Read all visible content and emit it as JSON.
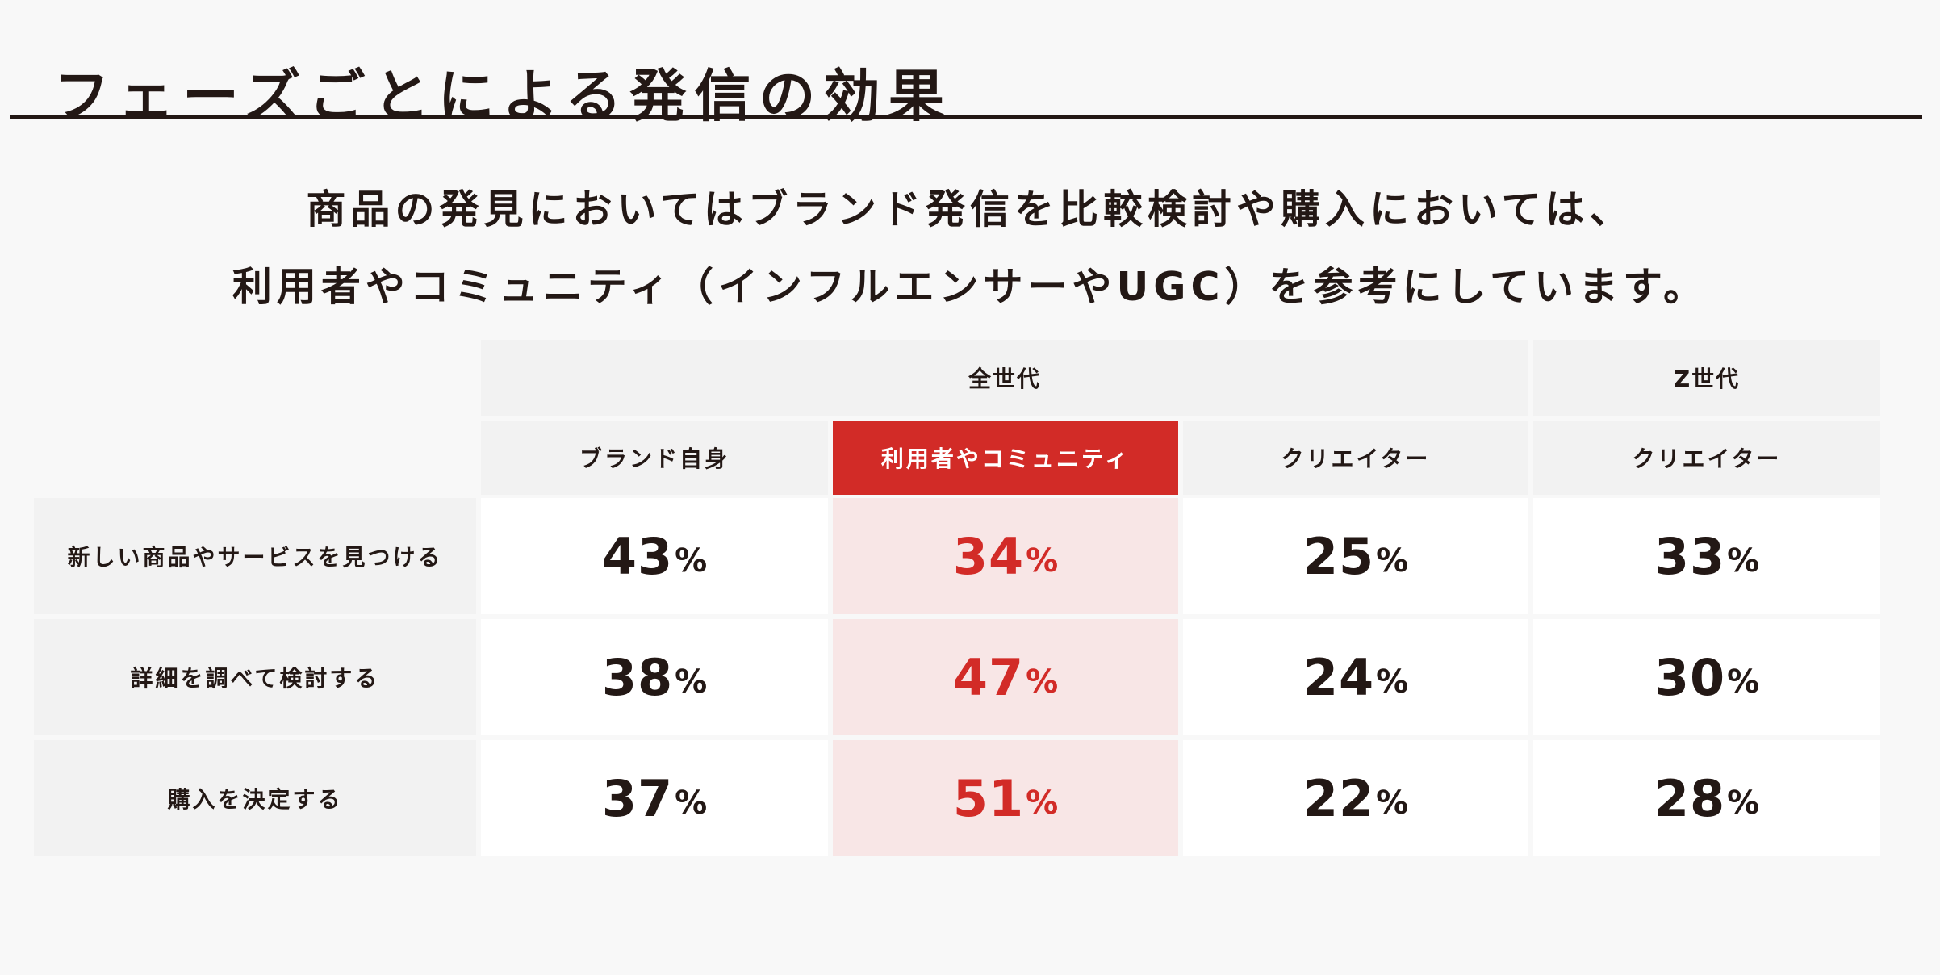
{
  "page": {
    "title": "フェーズごとによる発信の効果"
  },
  "lead": {
    "line1": "商品の発見においてはブランド発信を比較検討や購入においては、",
    "line2": "利用者やコミュニティ（インフルエンサーやUGC）を参考にしています。"
  },
  "table": {
    "groups": [
      {
        "label": "全世代"
      },
      {
        "label": "Z世代"
      }
    ],
    "columns": [
      {
        "label": "ブランド自身",
        "highlight": false
      },
      {
        "label": "利用者やコミュニティ",
        "highlight": true
      },
      {
        "label": "クリエイター",
        "highlight": false
      },
      {
        "label": "クリエイター",
        "highlight": false
      }
    ],
    "unit": "%",
    "rows": [
      {
        "label": "新しい商品やサービスを見つける",
        "values": [
          "43",
          "34",
          "25",
          "33"
        ]
      },
      {
        "label": "詳細を調べて検討する",
        "values": [
          "38",
          "47",
          "24",
          "30"
        ]
      },
      {
        "label": "購入を決定する",
        "values": [
          "37",
          "51",
          "22",
          "28"
        ]
      }
    ]
  },
  "colors": {
    "accent": "#d22b27",
    "accent_light": "#f8e6e6",
    "header_bg": "#f2f2f2",
    "text": "#231815"
  }
}
